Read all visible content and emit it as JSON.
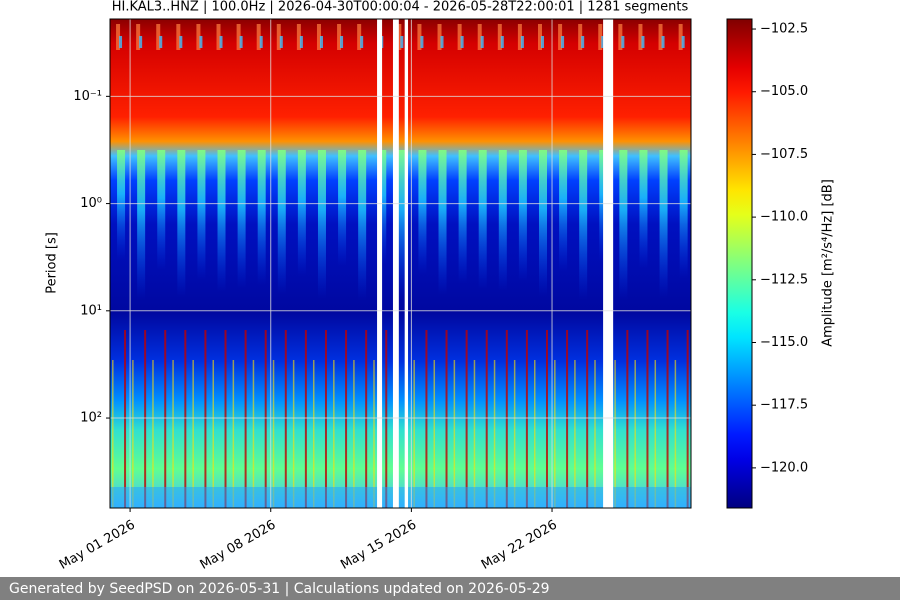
{
  "chart_data": {
    "type": "spectrogram",
    "title": "HI.KAL3..HNZ | 100.0Hz | 2026-04-30T00:00:04 - 2026-05-28T22:00:01 | 1281 segments",
    "y_label": "Period [s]",
    "colorbar_label": "Amplitude [m²/s⁴/Hz] [dB]",
    "colormap": "jet",
    "log_y": true,
    "y_inverted": true,
    "grid": true,
    "xlim": [
      "2026-04-30T00:00:04",
      "2026-05-28T22:00:01"
    ],
    "xticks": [
      {
        "value": "2026-05-01",
        "label": "May 01 2026"
      },
      {
        "value": "2026-05-08",
        "label": "May 08 2026"
      },
      {
        "value": "2026-05-15",
        "label": "May 15 2026"
      },
      {
        "value": "2026-05-22",
        "label": "May 22 2026"
      }
    ],
    "ylim": [
      0.019,
      690
    ],
    "yticks": [
      {
        "value": 0.1,
        "label": "10⁻¹"
      },
      {
        "value": 1,
        "label": "10⁰"
      },
      {
        "value": 10,
        "label": "10¹"
      },
      {
        "value": 100,
        "label": "10²"
      }
    ],
    "zlim": [
      -121.6,
      -102.1
    ],
    "zticks": [
      {
        "value": -102.5,
        "label": "−102.5"
      },
      {
        "value": -105,
        "label": "−105.0"
      },
      {
        "value": -107.5,
        "label": "−107.5"
      },
      {
        "value": -110,
        "label": "−110.0"
      },
      {
        "value": -112.5,
        "label": "−112.5"
      },
      {
        "value": -115,
        "label": "−115.0"
      },
      {
        "value": -117.5,
        "label": "−117.5"
      },
      {
        "value": -120,
        "label": "−120.0"
      }
    ],
    "gaps": [
      [
        "2026-05-13T07:00",
        "2026-05-13T13:00"
      ],
      [
        "2026-05-14T02:00",
        "2026-05-14T09:00"
      ],
      [
        "2026-05-14T16:00",
        "2026-05-14T20:00"
      ],
      [
        "2026-05-24T13:00",
        "2026-05-25T01:00"
      ]
    ]
  },
  "footer": "Generated by SeedPSD on 2026-05-31 | Calculations updated on 2026-05-29"
}
